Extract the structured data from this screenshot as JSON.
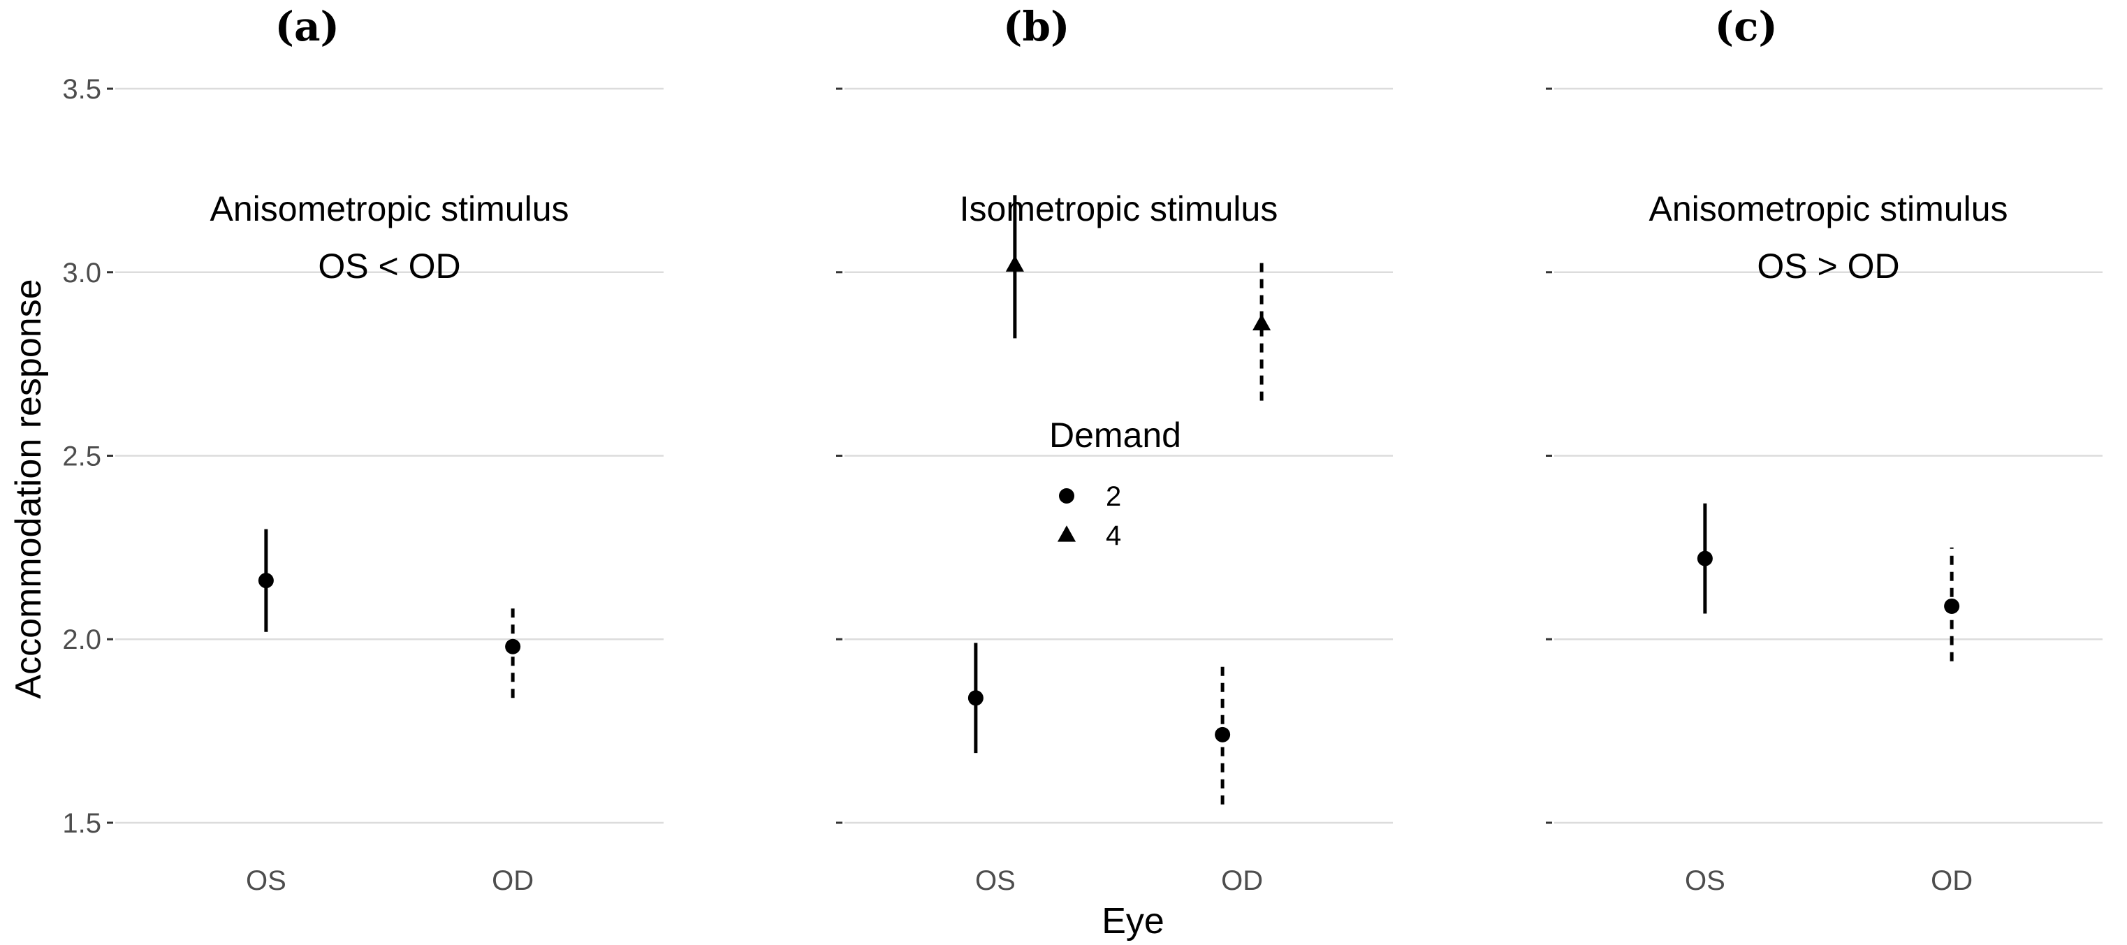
{
  "chart_data": {
    "type": "scatter",
    "ylabel": "Accommodation response",
    "xlabel": "Eye",
    "ylim": [
      1.42,
      3.58
    ],
    "yticks": [
      1.5,
      2.0,
      2.5,
      3.0,
      3.5
    ],
    "ytick_labels": [
      "1.5",
      "2.0",
      "2.5",
      "3.0",
      "3.5"
    ],
    "categories": [
      "OS",
      "OD"
    ],
    "grid": true,
    "legend": {
      "title": "Demand",
      "entries": [
        {
          "label": "2",
          "shape": "circle"
        },
        {
          "label": "4",
          "shape": "triangle"
        }
      ],
      "placement": "inside-panel-b"
    },
    "panels": [
      {
        "letter": "(a)",
        "subtitle": [
          "Anisometropic stimulus",
          "OS < OD"
        ],
        "points": [
          {
            "eye": "OS",
            "demand": "2",
            "y": 2.16,
            "ymin": 2.02,
            "ymax": 2.3
          },
          {
            "eye": "OD",
            "demand": "2",
            "y": 1.98,
            "ymin": 1.84,
            "ymax": 2.09
          }
        ]
      },
      {
        "letter": "(b)",
        "subtitle": [
          "Isometropic stimulus"
        ],
        "points": [
          {
            "eye": "OS",
            "demand": "2",
            "y": 1.84,
            "ymin": 1.69,
            "ymax": 1.99
          },
          {
            "eye": "OS",
            "demand": "4",
            "y": 3.02,
            "ymin": 2.82,
            "ymax": 3.21
          },
          {
            "eye": "OD",
            "demand": "2",
            "y": 1.74,
            "ymin": 1.55,
            "ymax": 1.93
          },
          {
            "eye": "OD",
            "demand": "4",
            "y": 2.86,
            "ymin": 2.65,
            "ymax": 3.03
          }
        ]
      },
      {
        "letter": "(c)",
        "subtitle": [
          "Anisometropic stimulus",
          "OS > OD"
        ],
        "points": [
          {
            "eye": "OS",
            "demand": "2",
            "y": 2.22,
            "ymin": 2.07,
            "ymax": 2.37
          },
          {
            "eye": "OD",
            "demand": "2",
            "y": 2.09,
            "ymin": 1.94,
            "ymax": 2.25
          }
        ]
      }
    ]
  }
}
